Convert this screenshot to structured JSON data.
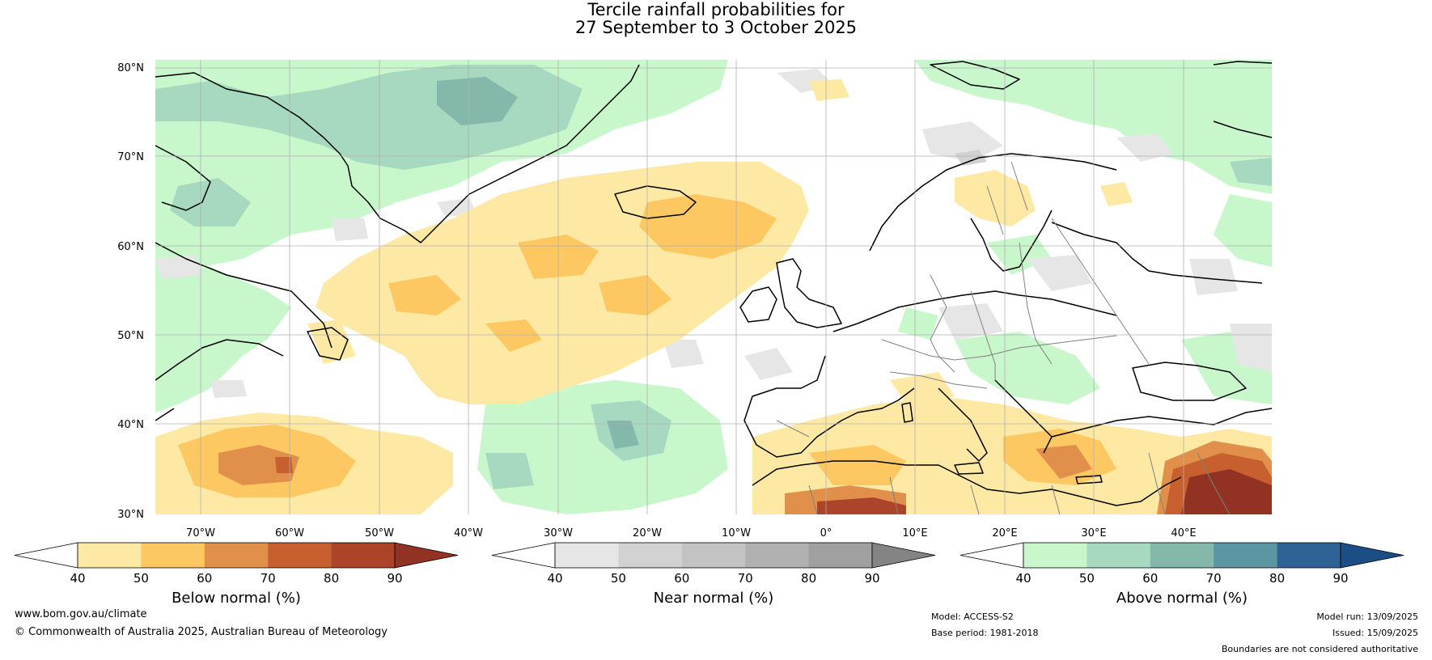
{
  "title": {
    "line1": "Tercile rainfall probabilities for",
    "line2": "27 September to 3 October 2025"
  },
  "map": {
    "lat_labels": [
      "80°N",
      "70°N",
      "60°N",
      "50°N",
      "40°N",
      "30°N"
    ],
    "lon_labels": [
      "70°W",
      "60°W",
      "50°W",
      "40°W",
      "30°W",
      "20°W",
      "10°W",
      "0°",
      "10°E",
      "20°E",
      "30°E",
      "40°E"
    ]
  },
  "colorbars": [
    {
      "id": "below",
      "label": "Below normal (%)",
      "ticks": [
        "40",
        "50",
        "60",
        "70",
        "80",
        "90"
      ],
      "colors": [
        "#ffffff",
        "#fde9a3",
        "#fdc762",
        "#e0904a",
        "#c75f2f",
        "#ab4428",
        "#923222"
      ]
    },
    {
      "id": "near",
      "label": "Near normal (%)",
      "ticks": [
        "40",
        "50",
        "60",
        "70",
        "80",
        "90"
      ],
      "colors": [
        "#ffffff",
        "#e6e6e6",
        "#d2d2d2",
        "#c3c3c3",
        "#b1b1b1",
        "#a0a0a0",
        "#848484"
      ]
    },
    {
      "id": "above",
      "label": "Above normal (%)",
      "ticks": [
        "40",
        "50",
        "60",
        "70",
        "80",
        "90"
      ],
      "colors": [
        "#ffffff",
        "#c7f7cb",
        "#a6d9bf",
        "#84b8ab",
        "#5d96a3",
        "#2f6396",
        "#1a4e85"
      ]
    }
  ],
  "colors": {
    "land_outline": "#000000",
    "border": "#808080",
    "grid": "#b0b0b0"
  },
  "footer": {
    "website": "www.bom.gov.au/climate",
    "copyright": "© Commonwealth of Australia 2025, Australian Bureau of Meteorology",
    "model": "Model: ACCESS-S2",
    "base_period": "Base period: 1981-2018",
    "model_run": "Model run: 13/09/2025",
    "issued": "Issued: 15/09/2025",
    "disclaimer": "Boundaries are not considered authoritative"
  }
}
